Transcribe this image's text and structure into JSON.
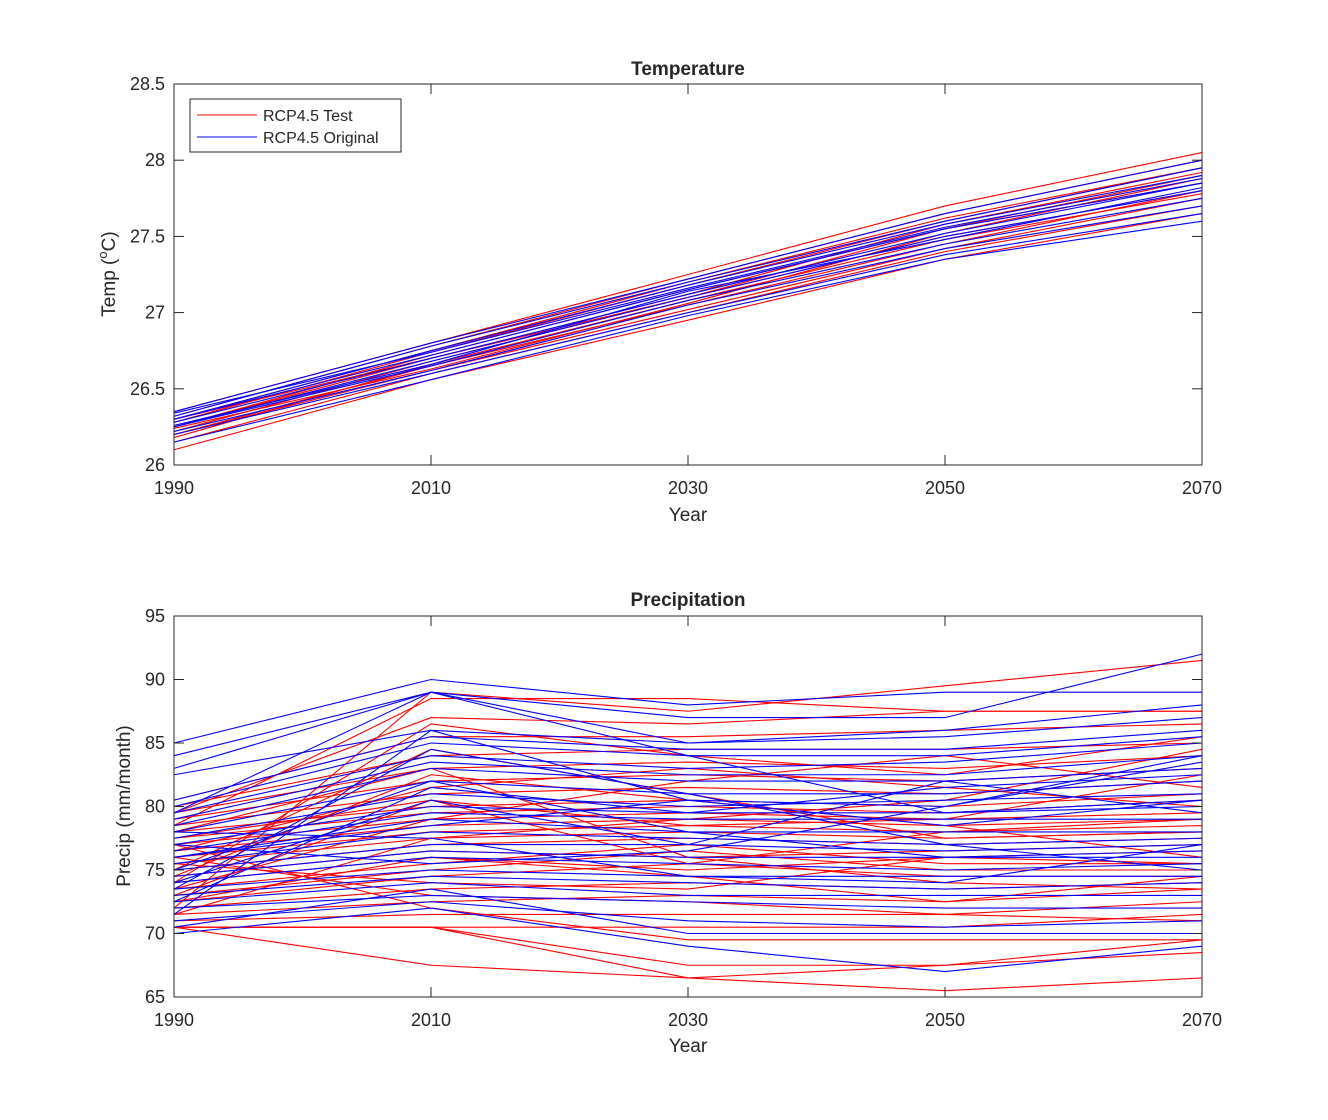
{
  "chart_data": [
    {
      "type": "line",
      "title": "Temperature",
      "xlabel": "Year",
      "ylabel_main": "Temp (",
      "ylabel_sup": "o",
      "ylabel_tail": "C)",
      "x": [
        1990,
        2010,
        2030,
        2050,
        2070
      ],
      "xlim": [
        1990,
        2070
      ],
      "ylim": [
        26,
        28.5
      ],
      "xticks": [
        "1990",
        "2010",
        "2030",
        "2050",
        "2070"
      ],
      "yticks": [
        "26",
        "26.5",
        "27",
        "27.5",
        "28",
        "28.5"
      ],
      "grid": false,
      "legend_position": "top-left",
      "legend": [
        {
          "label": "RCP4.5 Test",
          "color": "#ff0000"
        },
        {
          "label": "RCP4.5 Original",
          "color": "#0000ff"
        }
      ],
      "groups": [
        {
          "name": "RCP4.5 Test",
          "color": "#ff0000",
          "lines": [
            [
              26.1,
              26.56,
              26.95,
              27.35,
              27.65
            ],
            [
              26.15,
              26.6,
              27.0,
              27.4,
              27.7
            ],
            [
              26.2,
              26.62,
              27.02,
              27.42,
              27.75
            ],
            [
              26.2,
              26.65,
              27.05,
              27.45,
              27.8
            ],
            [
              26.22,
              26.68,
              27.1,
              27.5,
              27.8
            ],
            [
              26.25,
              26.7,
              27.1,
              27.55,
              27.85
            ],
            [
              26.25,
              26.72,
              27.15,
              27.55,
              27.9
            ],
            [
              26.28,
              26.74,
              27.18,
              27.6,
              27.95
            ],
            [
              26.3,
              26.75,
              27.2,
              27.62,
              27.95
            ],
            [
              26.32,
              26.78,
              27.22,
              27.65,
              28.0
            ],
            [
              26.35,
              26.8,
              27.25,
              27.7,
              28.05
            ],
            [
              26.18,
              26.66,
              27.08,
              27.48,
              27.78
            ],
            [
              26.24,
              26.63,
              27.06,
              27.52,
              27.88
            ],
            [
              26.3,
              26.7,
              27.12,
              27.58,
              27.92
            ]
          ]
        },
        {
          "name": "RCP4.5 Original",
          "color": "#0000ff",
          "lines": [
            [
              26.15,
              26.56,
              26.98,
              27.35,
              27.6
            ],
            [
              26.2,
              26.6,
              27.0,
              27.38,
              27.65
            ],
            [
              26.22,
              26.62,
              27.05,
              27.42,
              27.7
            ],
            [
              26.25,
              26.65,
              27.08,
              27.45,
              27.75
            ],
            [
              26.25,
              26.68,
              27.1,
              27.5,
              27.8
            ],
            [
              26.28,
              26.7,
              27.12,
              27.52,
              27.85
            ],
            [
              26.3,
              26.72,
              27.15,
              27.55,
              27.85
            ],
            [
              26.3,
              26.75,
              27.18,
              27.58,
              27.9
            ],
            [
              26.32,
              26.78,
              27.2,
              27.6,
              27.95
            ],
            [
              26.35,
              26.8,
              27.22,
              27.65,
              28.0
            ],
            [
              26.26,
              26.66,
              27.14,
              27.48,
              27.82
            ],
            [
              26.34,
              26.74,
              27.16,
              27.56,
              27.88
            ]
          ]
        }
      ]
    },
    {
      "type": "line",
      "title": "Precipitation",
      "xlabel": "Year",
      "ylabel": "Precip (mm/month)",
      "x": [
        1990,
        2010,
        2030,
        2050,
        2070
      ],
      "xlim": [
        1990,
        2070
      ],
      "ylim": [
        65,
        95
      ],
      "xticks": [
        "1990",
        "2010",
        "2030",
        "2050",
        "2070"
      ],
      "yticks": [
        "65",
        "70",
        "75",
        "80",
        "85",
        "90",
        "95"
      ],
      "grid": false,
      "groups": [
        {
          "name": "RCP4.5 Test",
          "color": "#ff0000",
          "lines": [
            [
              70.5,
              67.5,
              66.5,
              65.5,
              66.5
            ],
            [
              70.5,
              70.5,
              66.5,
              67.5,
              68.5
            ],
            [
              70.5,
              70.5,
              67.5,
              67.5,
              69.5
            ],
            [
              70.5,
              70.5,
              70.5,
              70.5,
              71.5
            ],
            [
              71.0,
              71.5,
              71.5,
              71.5,
              72.5
            ],
            [
              71.5,
              72.5,
              73.0,
              72.5,
              73.5
            ],
            [
              72.0,
              73.5,
              74.0,
              73.5,
              74.0
            ],
            [
              72.5,
              74.5,
              75.5,
              74.5,
              74.5
            ],
            [
              73.0,
              75.0,
              76.5,
              75.0,
              75.0
            ],
            [
              73.5,
              75.5,
              77.0,
              75.5,
              75.5
            ],
            [
              74.0,
              76.0,
              75.0,
              76.0,
              76.5
            ],
            [
              74.5,
              76.5,
              76.0,
              76.5,
              77.0
            ],
            [
              75.0,
              77.0,
              77.5,
              77.0,
              77.5
            ],
            [
              75.5,
              77.5,
              78.0,
              77.5,
              78.0
            ],
            [
              76.0,
              78.0,
              78.5,
              78.0,
              78.5
            ],
            [
              76.5,
              78.5,
              79.0,
              78.5,
              79.0
            ],
            [
              77.0,
              79.0,
              79.5,
              79.0,
              79.5
            ],
            [
              77.5,
              79.5,
              80.0,
              79.5,
              80.5
            ],
            [
              78.0,
              80.0,
              80.5,
              80.0,
              81.0
            ],
            [
              78.5,
              81.0,
              81.5,
              81.0,
              82.0
            ],
            [
              79.0,
              82.0,
              82.5,
              82.0,
              83.0
            ],
            [
              79.5,
              83.0,
              83.5,
              83.0,
              84.0
            ],
            [
              80.0,
              84.0,
              84.5,
              84.5,
              85.0
            ],
            [
              80.5,
              85.5,
              85.5,
              86.0,
              86.5
            ],
            [
              79.5,
              87.0,
              86.5,
              87.5,
              87.5
            ],
            [
              78.5,
              88.5,
              88.5,
              87.5,
              87.5
            ],
            [
              72.0,
              89.0,
              87.5,
              89.5,
              91.5
            ],
            [
              74.0,
              86.5,
              84.0,
              82.5,
              85.5
            ],
            [
              73.0,
              80.5,
              78.5,
              79.0,
              82.5
            ],
            [
              75.5,
              74.0,
              73.5,
              76.0,
              75.5
            ],
            [
              76.0,
              73.0,
              72.5,
              71.5,
              71.0
            ],
            [
              77.0,
              72.0,
              69.5,
              69.5,
              69.5
            ],
            [
              78.0,
              83.0,
              76.0,
              74.0,
              73.5
            ],
            [
              74.5,
              82.5,
              80.5,
              78.5,
              76.0
            ],
            [
              71.5,
              77.5,
              79.0,
              80.5,
              84.5
            ],
            [
              76.5,
              81.5,
              83.0,
              81.5,
              80.0
            ],
            [
              73.5,
              79.0,
              82.0,
              84.0,
              81.5
            ],
            [
              77.5,
              80.5,
              75.5,
              78.0,
              79.0
            ],
            [
              72.5,
              76.0,
              74.5,
              72.5,
              74.5
            ],
            [
              75.0,
              84.5,
              81.0,
              77.5,
              78.0
            ]
          ]
        },
        {
          "name": "RCP4.5 Original",
          "color": "#0000ff",
          "lines": [
            [
              85.0,
              90.0,
              88.0,
              89.0,
              89.0
            ],
            [
              84.0,
              89.0,
              87.0,
              87.0,
              92.0
            ],
            [
              83.0,
              89.0,
              85.0,
              86.0,
              88.0
            ],
            [
              82.5,
              86.0,
              85.0,
              85.5,
              87.0
            ],
            [
              80.5,
              85.5,
              84.5,
              84.5,
              86.0
            ],
            [
              80.0,
              85.0,
              84.0,
              84.0,
              85.5
            ],
            [
              79.5,
              84.0,
              83.0,
              83.5,
              85.0
            ],
            [
              79.0,
              83.5,
              82.5,
              82.5,
              84.0
            ],
            [
              78.5,
              83.0,
              82.0,
              82.0,
              83.0
            ],
            [
              78.0,
              82.0,
              81.0,
              81.0,
              82.0
            ],
            [
              77.5,
              81.0,
              80.0,
              80.5,
              81.0
            ],
            [
              77.0,
              80.0,
              79.5,
              79.5,
              80.0
            ],
            [
              76.5,
              79.5,
              79.0,
              79.0,
              79.0
            ],
            [
              76.0,
              79.0,
              78.0,
              78.0,
              78.0
            ],
            [
              75.5,
              78.0,
              77.5,
              77.0,
              77.5
            ],
            [
              75.0,
              77.0,
              77.0,
              76.5,
              77.0
            ],
            [
              74.5,
              76.5,
              76.0,
              76.0,
              76.0
            ],
            [
              74.0,
              76.0,
              75.5,
              75.0,
              75.5
            ],
            [
              73.5,
              75.0,
              74.5,
              74.5,
              74.5
            ],
            [
              73.0,
              74.5,
              74.0,
              73.5,
              74.0
            ],
            [
              72.5,
              74.0,
              73.0,
              73.0,
              73.0
            ],
            [
              72.0,
              73.0,
              72.5,
              72.0,
              72.0
            ],
            [
              71.0,
              72.5,
              71.0,
              70.5,
              71.0
            ],
            [
              70.0,
              72.0,
              69.0,
              67.0,
              69.0
            ],
            [
              70.5,
              73.5,
              70.0,
              70.0,
              70.0
            ],
            [
              79.5,
              89.0,
              84.0,
              79.5,
              80.5
            ],
            [
              71.5,
              86.0,
              80.5,
              80.0,
              84.0
            ],
            [
              75.0,
              82.0,
              78.0,
              76.0,
              76.5
            ],
            [
              74.0,
              80.5,
              77.0,
              82.0,
              79.5
            ],
            [
              76.0,
              78.5,
              80.5,
              78.5,
              80.5
            ],
            [
              73.5,
              84.5,
              81.0,
              77.0,
              75.0
            ],
            [
              77.0,
              75.5,
              76.5,
              80.0,
              83.5
            ],
            [
              78.0,
              77.5,
              74.5,
              74.0,
              77.0
            ],
            [
              72.5,
              81.5,
              79.5,
              81.5,
              82.5
            ]
          ]
        }
      ]
    }
  ]
}
